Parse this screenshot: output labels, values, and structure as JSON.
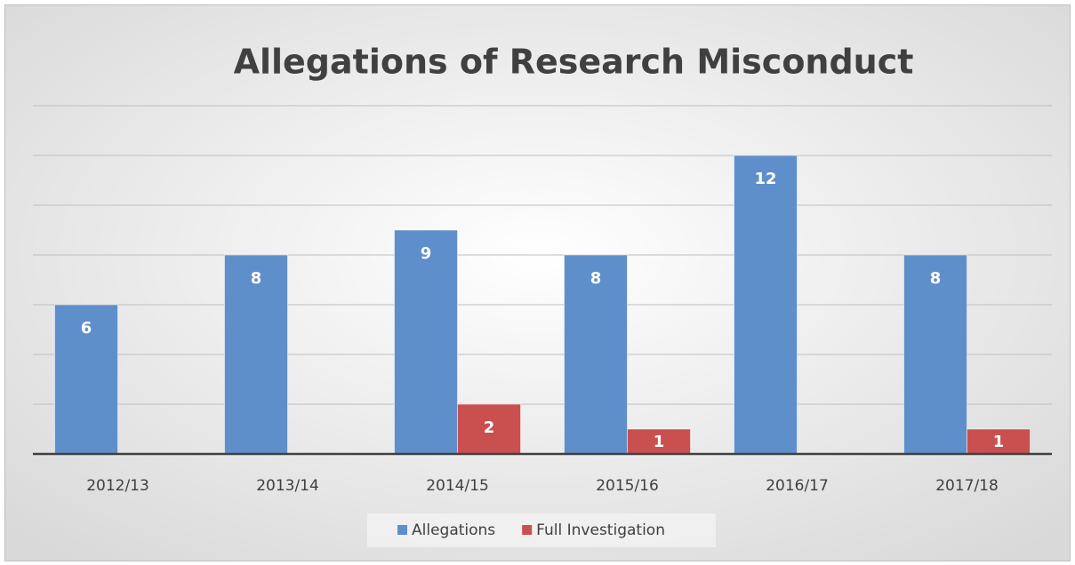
{
  "chart_data": {
    "type": "bar",
    "title": "Allegations of Research Misconduct",
    "categories": [
      "2012/13",
      "2013/14",
      "2014/15",
      "2015/16",
      "2016/17",
      "2017/18"
    ],
    "series": [
      {
        "name": "Allegations",
        "color": "#5f8fca",
        "values": [
          6,
          8,
          9,
          8,
          12,
          8
        ]
      },
      {
        "name": "Full Investigation",
        "color": "#c9504f",
        "values": [
          null,
          null,
          2,
          1,
          null,
          1
        ]
      }
    ],
    "ylim": [
      0,
      14
    ],
    "yticks": [
      0,
      2,
      4,
      6,
      8,
      10,
      12,
      14
    ],
    "grid": true,
    "legend": "bottom"
  }
}
